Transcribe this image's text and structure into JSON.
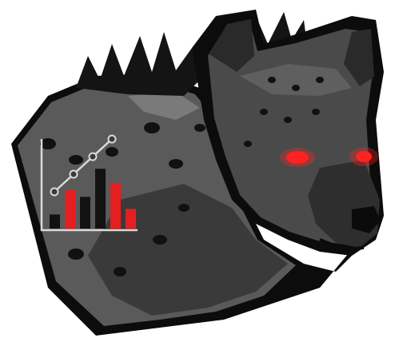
{
  "image": {
    "subject": "hyena-head-mascot-with-bar-chart",
    "icon_name": "hyena-chart-logo-icon"
  },
  "colors": {
    "background": "#ffffff",
    "outline": "#0c0c0c",
    "fur_light": "#6f6f6f",
    "fur_mid": "#4a4a4a",
    "fur_dark": "#2f2f2f",
    "mane": "#141414",
    "spots": "#111111",
    "eye_glow": "#ff2222",
    "chart_red": "#e51f1f",
    "chart_black": "#121212",
    "chart_line": "#d9d9d9"
  },
  "chart_marks": {
    "bar_colors": [
      "black",
      "red",
      "black",
      "black",
      "red",
      "red"
    ],
    "bar_levels": [
      0.2,
      0.55,
      0.45,
      0.85,
      0.65,
      0.28
    ],
    "line_points": 4
  }
}
